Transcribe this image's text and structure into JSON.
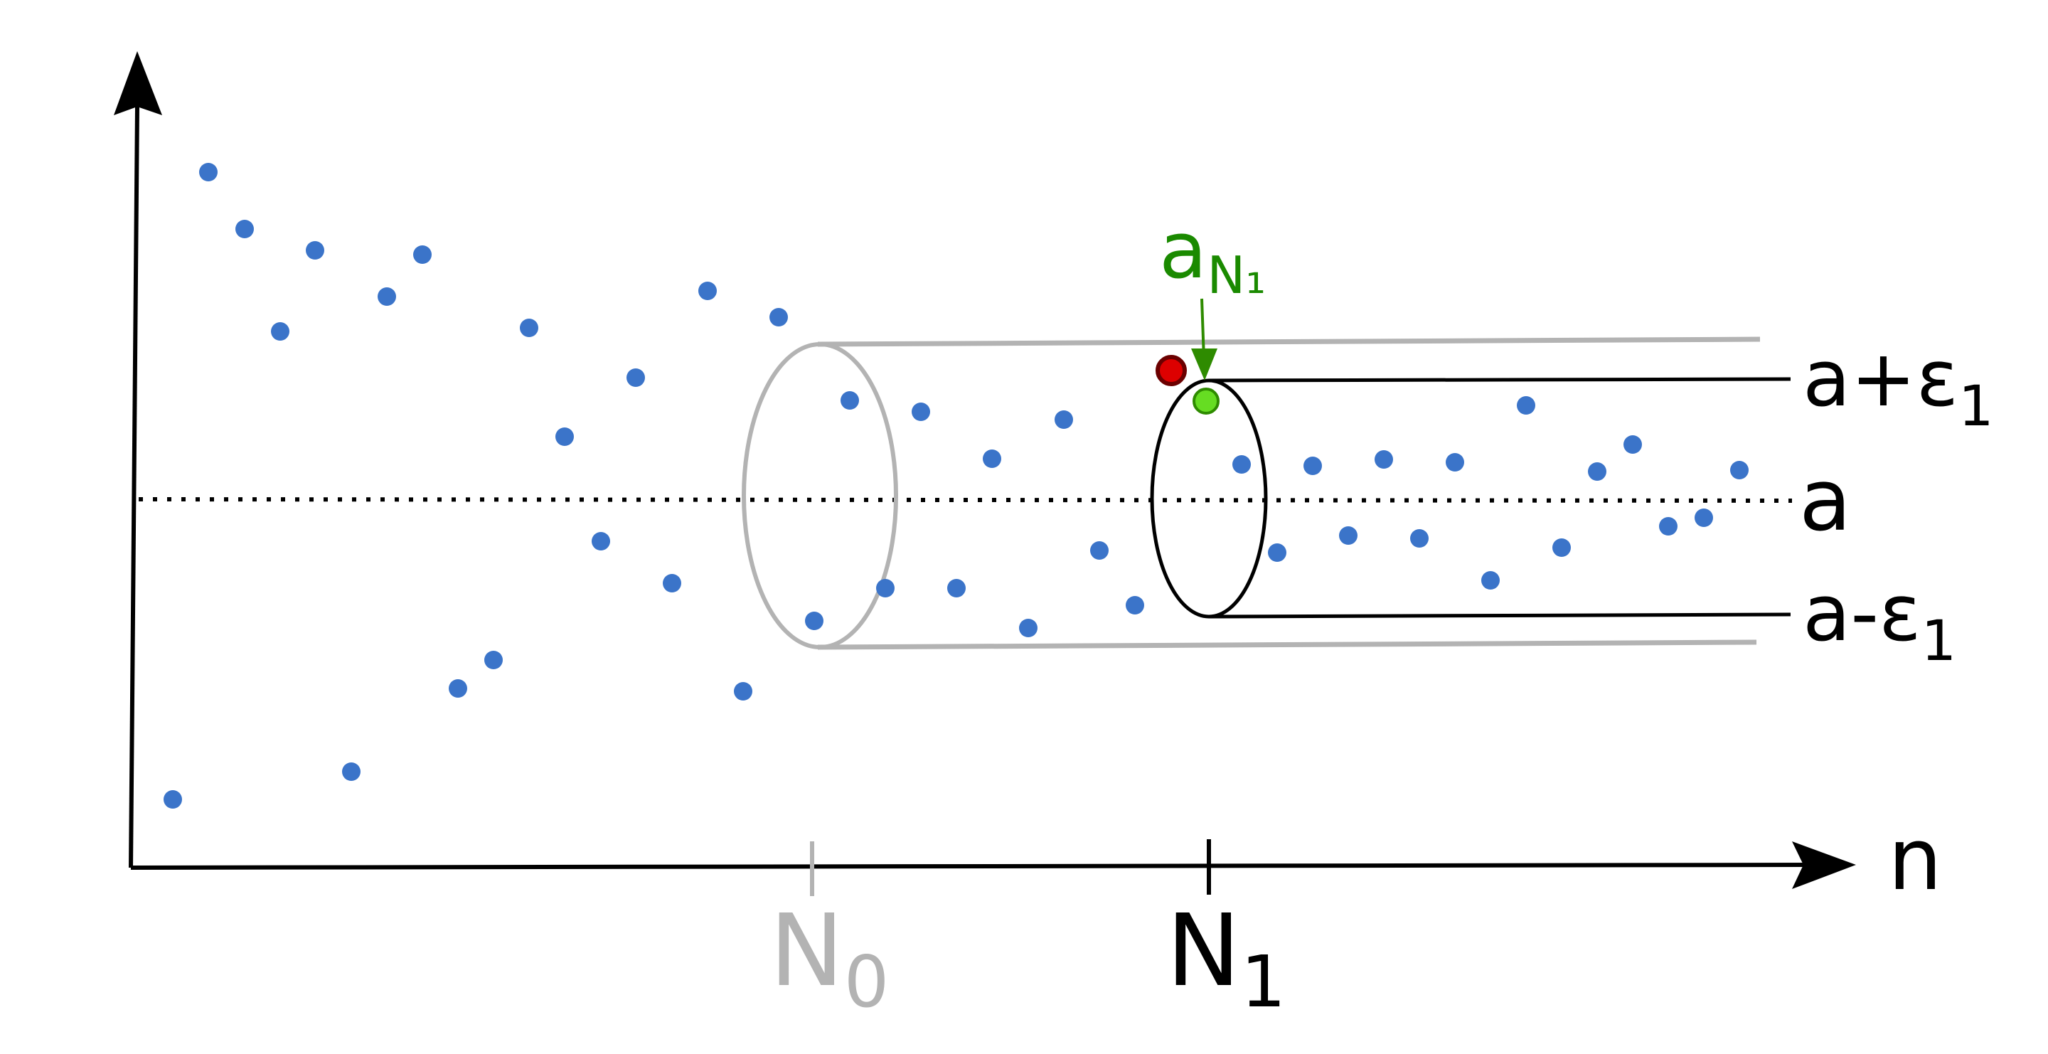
{
  "labels": {
    "x_axis": "n",
    "upper_bound": "a+ε",
    "upper_bound_sub": "1",
    "limit": "a",
    "lower_bound": "a-ε",
    "lower_bound_sub": "1",
    "n0_letter": "N",
    "n0_sub": "0",
    "n1_letter": "N",
    "n1_sub": "1",
    "highlight_letter": "a",
    "highlight_sub": "N₁"
  },
  "colors": {
    "axis": "#000000",
    "points": "#3b74c9",
    "outer_tube": "#b3b3b3",
    "inner_tube": "#000000",
    "highlight": "#1a8a00",
    "highlight_point": "#55cc22",
    "outlier_point": "#cc0000"
  }
}
